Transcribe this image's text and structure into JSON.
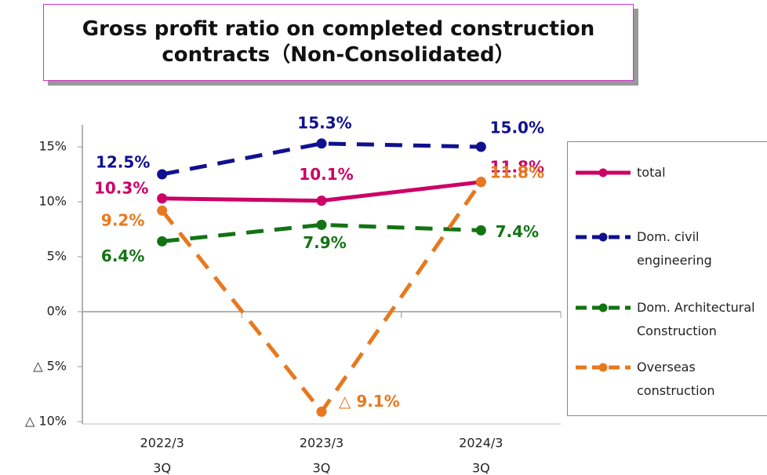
{
  "chart_data": {
    "type": "line",
    "title": "Gross profit ratio on completed construction contracts（Non-Consolidated）",
    "categories": [
      [
        "2022/3",
        "3Q"
      ],
      [
        "2023/3",
        "3Q"
      ],
      [
        "2024/3",
        "3Q"
      ]
    ],
    "ylim": [
      -10,
      17
    ],
    "yticks": [
      {
        "value": -10,
        "label": "△ 10%"
      },
      {
        "value": -5,
        "label": "△ 5%"
      },
      {
        "value": 0,
        "label": "0%"
      },
      {
        "value": 5,
        "label": "5%"
      },
      {
        "value": 10,
        "label": "10%"
      },
      {
        "value": 15,
        "label": "15%"
      }
    ],
    "series": [
      {
        "name": "total",
        "color": "#cc0066",
        "dashed": false,
        "values": [
          10.3,
          10.1,
          11.8
        ],
        "value_labels": [
          "10.3%",
          "10.1%",
          "11.8%"
        ]
      },
      {
        "name": "Dom. civil engineering",
        "color": "#101090",
        "dashed": true,
        "values": [
          12.5,
          15.3,
          15.0
        ],
        "value_labels": [
          "12.5%",
          "15.3%",
          "15.0%"
        ]
      },
      {
        "name": "Dom. Architectural Construction",
        "color": "#137313",
        "dashed": true,
        "values": [
          6.4,
          7.9,
          7.4
        ],
        "value_labels": [
          "6.4%",
          "7.9%",
          "7.4%"
        ]
      },
      {
        "name": "Overseas construction",
        "color": "#e8781e",
        "dashed": true,
        "values": [
          9.2,
          -9.1,
          11.8
        ],
        "value_labels": [
          "9.2%",
          "△ 9.1%",
          "11.8%"
        ]
      }
    ]
  }
}
